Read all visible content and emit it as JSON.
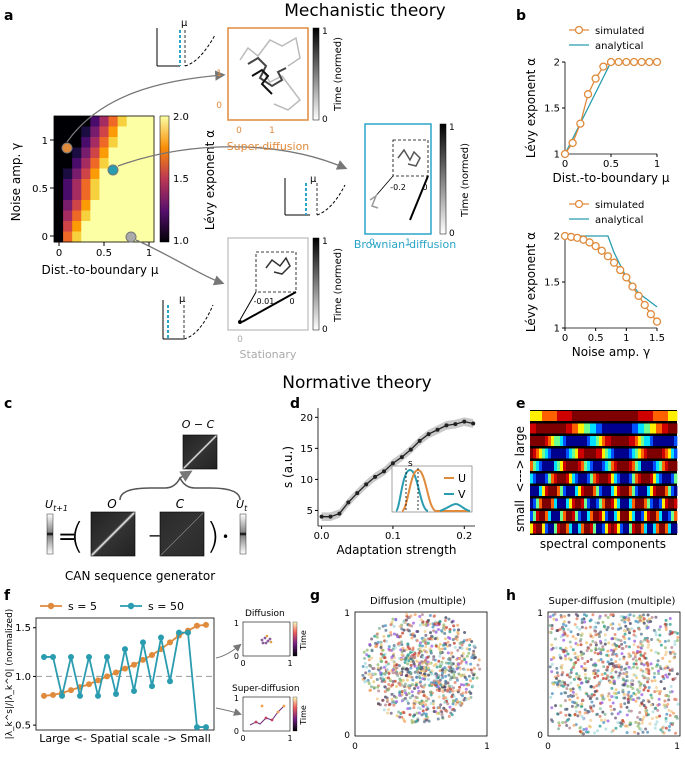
{
  "titles": {
    "mechanistic": "Mechanistic theory",
    "normative": "Normative theory"
  },
  "panel_letters": [
    "a",
    "b",
    "c",
    "d",
    "e",
    "f",
    "g",
    "h"
  ],
  "panel_a": {
    "xlabel": "Dist.-to-boundary μ",
    "ylabel": "Noise amp. γ",
    "x_ticks": [
      "0",
      "0.5",
      "1"
    ],
    "y_ticks": [
      "0",
      "0.5",
      "1"
    ],
    "colorbar_label": "Lévy exponent α",
    "colorbar_ticks": [
      "1.0",
      "1.5",
      "2.0"
    ],
    "mu_symbol": "μ",
    "insets": {
      "super": {
        "label": "Super-diffusion",
        "x_ticks": [
          "0",
          "1"
        ],
        "y_ticks": [
          "0",
          "1"
        ],
        "cbar_label": "Time (normed)",
        "cbar_ticks": [
          "0",
          "1"
        ]
      },
      "brownian": {
        "label": "Brownian-diffusion",
        "x_ticks": [
          "0",
          "1"
        ],
        "zoom_ticks": [
          "-0.2",
          "0"
        ],
        "cbar_label": "Time (normed)",
        "cbar_ticks": [
          "0",
          "1"
        ]
      },
      "stationary": {
        "label": "Stationary",
        "x_ticks": [
          "0"
        ],
        "zoom_ticks": [
          "-0.01",
          "0"
        ],
        "cbar_label": "Time (normed)",
        "cbar_ticks": [
          "0",
          "1"
        ]
      }
    }
  },
  "chart_data": [
    {
      "id": "b-top",
      "type": "line",
      "xlabel": "Dist.-to-boundary μ",
      "ylabel": "Lévy exponent α",
      "x_ticks": [
        "0",
        "0.5",
        "1"
      ],
      "y_ticks": [
        "1",
        "1.5",
        "2"
      ],
      "xlim": [
        0,
        1
      ],
      "ylim": [
        1,
        2
      ],
      "legend": [
        "simulated",
        "analytical"
      ],
      "series": [
        {
          "name": "simulated",
          "x": [
            0,
            0.083,
            0.167,
            0.25,
            0.333,
            0.417,
            0.5,
            0.583,
            0.667,
            0.75,
            0.833,
            0.917,
            1.0
          ],
          "values": [
            1.0,
            1.12,
            1.33,
            1.65,
            1.82,
            1.95,
            2.0,
            2.0,
            2.0,
            2.0,
            2.0,
            2.0,
            2.0
          ]
        },
        {
          "name": "analytical",
          "x": [
            0,
            0.5,
            1.0
          ],
          "values": [
            1.0,
            2.0,
            2.0
          ]
        }
      ]
    },
    {
      "id": "b-bottom",
      "type": "line",
      "xlabel": "Noise amp. γ",
      "ylabel": "Lévy exponent α",
      "x_ticks": [
        "0",
        "0.5",
        "1",
        "1.5"
      ],
      "y_ticks": [
        "1",
        "1.5",
        "2"
      ],
      "xlim": [
        0,
        1.5
      ],
      "ylim": [
        1,
        2
      ],
      "legend": [
        "simulated",
        "analytical"
      ],
      "series": [
        {
          "name": "simulated",
          "x": [
            0,
            0.1,
            0.2,
            0.3,
            0.4,
            0.5,
            0.6,
            0.7,
            0.8,
            0.9,
            1.0,
            1.1,
            1.2,
            1.3,
            1.4,
            1.5
          ],
          "values": [
            2.0,
            1.99,
            1.98,
            1.96,
            1.93,
            1.89,
            1.84,
            1.78,
            1.71,
            1.63,
            1.55,
            1.45,
            1.35,
            1.25,
            1.15,
            1.07
          ]
        },
        {
          "name": "analytical",
          "x": [
            0,
            0.7,
            0.8,
            1.0,
            1.2,
            1.5
          ],
          "values": [
            2.0,
            2.0,
            1.82,
            1.55,
            1.38,
            1.23
          ]
        }
      ]
    },
    {
      "id": "d",
      "type": "line",
      "xlabel": "Adaptation strength",
      "ylabel": "s (a.u.)",
      "x_ticks": [
        "0.0",
        "0.1",
        "0.2"
      ],
      "y_ticks": [
        "5",
        "10",
        "15",
        "20"
      ],
      "xlim": [
        -0.005,
        0.215
      ],
      "ylim": [
        2.5,
        21.5
      ],
      "series": [
        {
          "name": "s",
          "x": [
            0,
            0.0125,
            0.025,
            0.0375,
            0.05,
            0.0625,
            0.075,
            0.0875,
            0.1,
            0.1125,
            0.125,
            0.1375,
            0.15,
            0.1625,
            0.175,
            0.1875,
            0.2,
            0.2125
          ],
          "values": [
            4.0,
            4.0,
            4.5,
            6.3,
            7.8,
            9.2,
            10.4,
            11.3,
            12.6,
            13.6,
            14.8,
            16.2,
            17.3,
            18.0,
            18.7,
            18.9,
            19.3,
            19.0
          ]
        }
      ],
      "inset": {
        "s_label": "s",
        "legend": [
          "U",
          "V"
        ]
      }
    },
    {
      "id": "f",
      "type": "line",
      "xlabel": "Large <- Spatial scale -> Small",
      "ylabel": "|λ_k^s|/|λ_k^0| (normalized)",
      "y_ticks": [
        "0.5",
        "1.0",
        "1.5"
      ],
      "ylim": [
        0.45,
        1.6
      ],
      "legend": [
        "s = 5",
        "s = 50"
      ],
      "series": [
        {
          "name": "s = 5",
          "values": [
            0.8,
            0.81,
            0.83,
            0.86,
            0.89,
            0.92,
            0.96,
            1.0,
            1.04,
            1.08,
            1.12,
            1.17,
            1.22,
            1.28,
            1.35,
            1.42,
            1.47,
            1.52,
            1.53
          ]
        },
        {
          "name": "s = 50",
          "values": [
            1.2,
            1.2,
            0.8,
            1.2,
            0.8,
            1.2,
            0.8,
            1.2,
            0.82,
            1.28,
            0.85,
            1.35,
            0.9,
            1.4,
            0.95,
            1.45,
            1.45,
            0.48,
            0.48
          ]
        }
      ]
    }
  ],
  "panel_c": {
    "title": "CAN sequence generator",
    "labels": {
      "u_next": "U",
      "u_next_sub": "t+1",
      "eq": "=",
      "o": "O",
      "c": "C",
      "oc": "O − C",
      "u": "U",
      "u_sub": "t",
      "minus": "−",
      "dot": "•"
    }
  },
  "panel_e": {
    "large": "large",
    "arrow": "<--->",
    "small": "small",
    "xlabel": "spectral components"
  },
  "panel_f_insets": {
    "diffusion": {
      "title": "Diffusion",
      "ticks": [
        "0",
        "1"
      ],
      "cbar": "Time"
    },
    "super": {
      "title": "Super-diffusion",
      "ticks": [
        "0",
        "1"
      ],
      "cbar": "Time"
    }
  },
  "panel_g": {
    "title": "Diffusion (multiple)",
    "ticks": [
      "0",
      "1"
    ]
  },
  "panel_h": {
    "title": "Super-diffusion (multiple)",
    "ticks": [
      "0",
      "1"
    ]
  }
}
